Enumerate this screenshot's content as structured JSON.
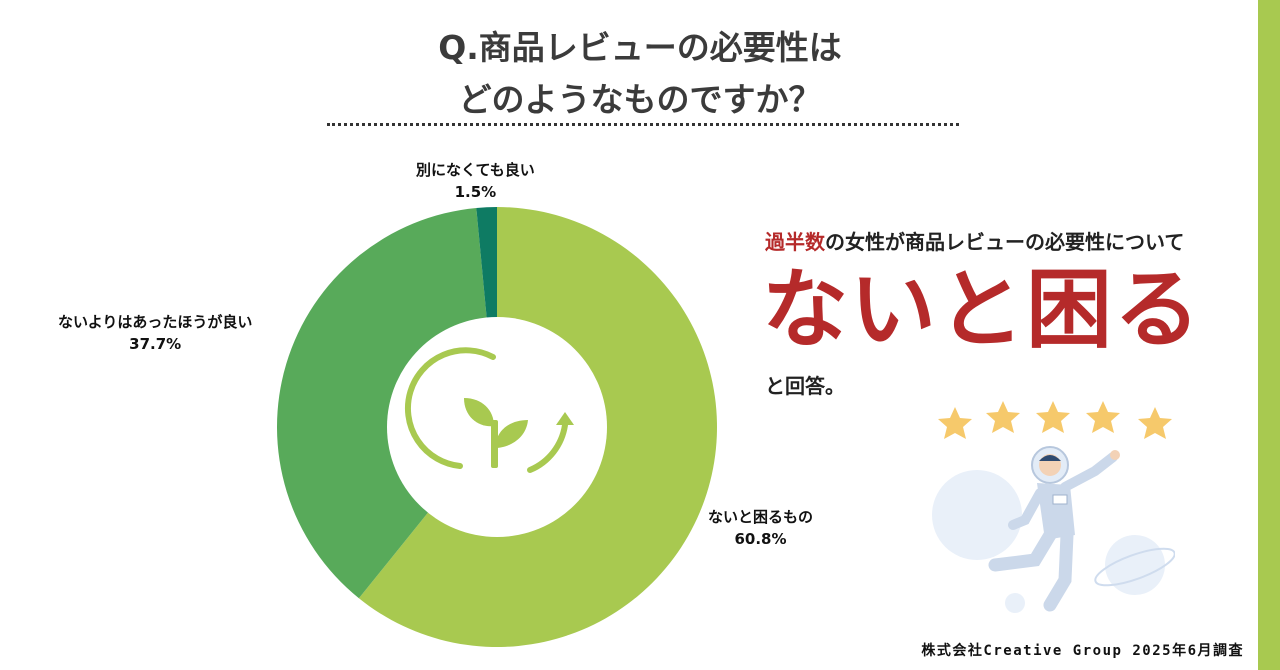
{
  "title": {
    "line1": "Q.商品レビューの必要性は",
    "line2": "どのようなものですか？"
  },
  "chart_data": {
    "type": "pie",
    "donut": true,
    "slices": [
      {
        "label": "ないと困るもの",
        "value": 60.8,
        "value_text": "60.8%",
        "color": "#a8c950"
      },
      {
        "label": "ないよりはあったほうが良い",
        "value": 37.7,
        "value_text": "37.7%",
        "color": "#58aa5a"
      },
      {
        "label": "別になくても良い",
        "value": 1.5,
        "value_text": "1.5%",
        "color": "#0e7b63"
      }
    ]
  },
  "center_icon": "sprout-cycle-icon",
  "headline": {
    "highlight": "過半数",
    "rest": "の女性が商品レビューの必要性について",
    "big": "ないと困る",
    "answer": "と回答。"
  },
  "illustration": "astronaut-with-stars-icon",
  "footer": "株式会社Creative Group 2025年6月調査",
  "colors": {
    "accent_red": "#b52a2a",
    "side_bar": "#a8c950",
    "title": "#3b3b3b"
  }
}
